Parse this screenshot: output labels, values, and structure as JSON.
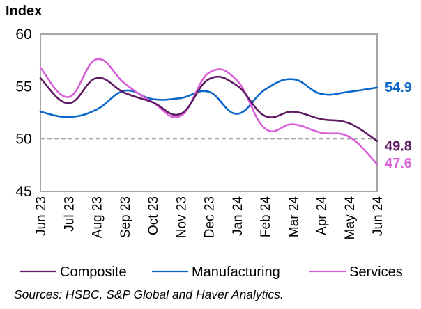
{
  "chart_data": {
    "type": "line",
    "title": "",
    "ylabel": "Index",
    "xlabel": "",
    "ylim": [
      45,
      60
    ],
    "yticks": [
      45,
      50,
      55,
      60
    ],
    "reference_line": {
      "value": 50,
      "style": "dashed"
    },
    "x": [
      "Jun 23",
      "Jul 23",
      "Aug 23",
      "Sep 23",
      "Oct 23",
      "Nov 23",
      "Dec 23",
      "Jan 24",
      "Feb 24",
      "Mar 24",
      "Apr 24",
      "May 24",
      "Jun 24"
    ],
    "series": [
      {
        "name": "Composite",
        "color": "#5e1a63",
        "values": [
          55.8,
          53.4,
          55.8,
          54.4,
          53.5,
          52.4,
          55.7,
          55.1,
          52.2,
          52.6,
          51.9,
          51.5,
          49.8
        ],
        "end_label": "49.8"
      },
      {
        "name": "Manufacturing",
        "color": "#0a66c8",
        "values": [
          52.6,
          52.1,
          52.8,
          54.6,
          53.8,
          53.9,
          54.5,
          52.4,
          54.7,
          55.7,
          54.3,
          54.5,
          54.9
        ],
        "end_label": "54.9"
      },
      {
        "name": "Services",
        "color": "#d95fd9",
        "values": [
          56.8,
          54.0,
          57.6,
          55.3,
          53.5,
          52.2,
          56.3,
          55.6,
          51.0,
          51.4,
          50.6,
          50.2,
          47.6
        ],
        "end_label": "47.6"
      }
    ],
    "legend": {
      "position": "bottom",
      "entries": [
        "Composite",
        "Manufacturing",
        "Services"
      ]
    },
    "grid": false,
    "source": "Sources: HSBC, S&P Global and Haver Analytics."
  }
}
